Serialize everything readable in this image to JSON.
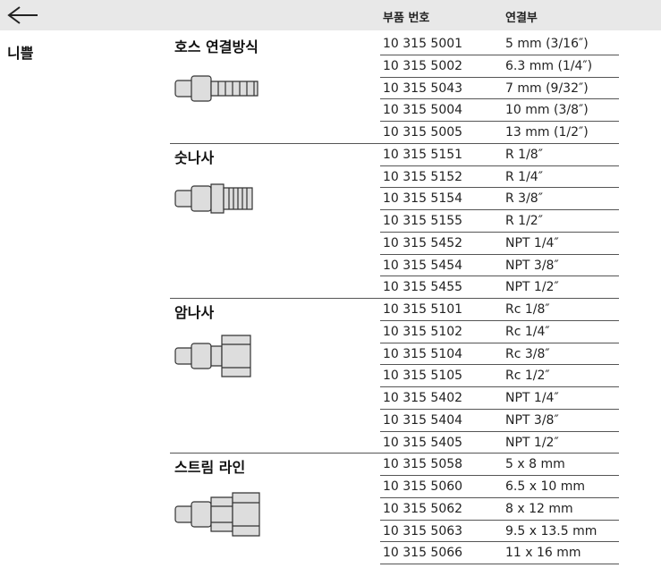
{
  "header": {
    "part_label": "부품 번호",
    "connection_label": "연결부"
  },
  "category": "니쁠",
  "groups": [
    {
      "name": "호스 연결방식",
      "rows": [
        [
          "10 315 5001",
          "5 mm (3/16″)"
        ],
        [
          "10 315 5002",
          "6.3 mm (1/4″)"
        ],
        [
          "10 315 5043",
          "7 mm (9/32″)"
        ],
        [
          "10 315 5004",
          "10 mm (3/8″)"
        ],
        [
          "10 315 5005",
          "13 mm (1/2″)"
        ]
      ]
    },
    {
      "name": "숫나사",
      "rows": [
        [
          "10 315 5151",
          "R 1/8″"
        ],
        [
          "10 315 5152",
          "R 1/4″"
        ],
        [
          "10 315 5154",
          "R 3/8″"
        ],
        [
          "10 315 5155",
          "R 1/2″"
        ],
        [
          "10 315 5452",
          "NPT 1/4″"
        ],
        [
          "10 315 5454",
          "NPT 3/8″"
        ],
        [
          "10 315 5455",
          "NPT 1/2″"
        ]
      ]
    },
    {
      "name": "암나사",
      "rows": [
        [
          "10 315 5101",
          "Rc 1/8″"
        ],
        [
          "10 315 5102",
          "Rc 1/4″"
        ],
        [
          "10 315 5104",
          "Rc 3/8″"
        ],
        [
          "10 315 5105",
          "Rc 1/2″"
        ],
        [
          "10 315 5402",
          "NPT 1/4″"
        ],
        [
          "10 315 5404",
          "NPT 3/8″"
        ],
        [
          "10 315 5405",
          "NPT 1/2″"
        ]
      ]
    },
    {
      "name": "스트림 라인",
      "rows": [
        [
          "10 315 5058",
          "5 x 8 mm"
        ],
        [
          "10 315 5060",
          "6.5 x 10 mm"
        ],
        [
          "10 315 5062",
          "8 x 12 mm"
        ],
        [
          "10 315 5063",
          "9.5 x 13.5 mm"
        ],
        [
          "10 315 5066",
          "11 x 16 mm"
        ]
      ]
    }
  ]
}
